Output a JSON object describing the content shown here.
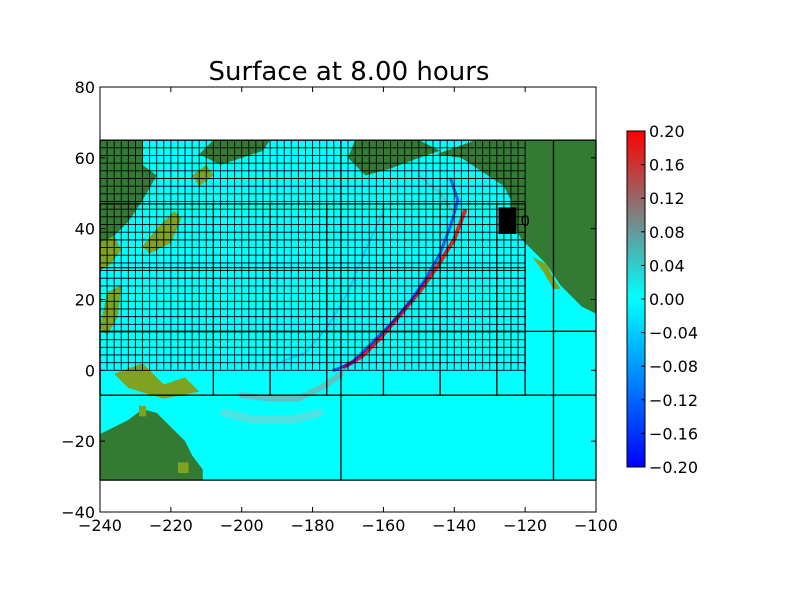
{
  "chart_data": {
    "type": "heatmap",
    "title": "Surface at 8.00 hours",
    "xlabel": "",
    "ylabel": "",
    "xlim": [
      -240,
      -100
    ],
    "ylim": [
      -40,
      80
    ],
    "xticks": [
      "−240",
      "−220",
      "−200",
      "−180",
      "−160",
      "−140",
      "−120",
      "−100"
    ],
    "yticks": [
      "80",
      "60",
      "40",
      "20",
      "0",
      "−20",
      "−40"
    ],
    "colorbar": {
      "range": [
        -0.2,
        0.2
      ],
      "ticks": [
        "0.20",
        "0.16",
        "0.12",
        "0.08",
        "0.04",
        "0.00",
        "−0.04",
        "−0.08",
        "−0.12",
        "−0.16",
        "−0.20"
      ],
      "colors": [
        "#0000ff",
        "#00ffff",
        "#ff0000"
      ]
    },
    "domain": {
      "x": [
        -240,
        -100
      ],
      "y": [
        -31,
        65
      ]
    },
    "gauge_label": "0",
    "grids": {
      "coarse_x": [
        -240,
        -172,
        -112,
        -100
      ],
      "coarse_y": [
        -31,
        -7,
        11,
        65
      ],
      "level2_x": [
        -240,
        -120
      ],
      "level2_y": [
        -7,
        47
      ],
      "fine_x": [
        -240,
        -120
      ],
      "fine_y": [
        0,
        65
      ]
    },
    "colors": {
      "water": "#00ffff",
      "land": "#337a33",
      "land_shallow": "#7fa320"
    }
  }
}
